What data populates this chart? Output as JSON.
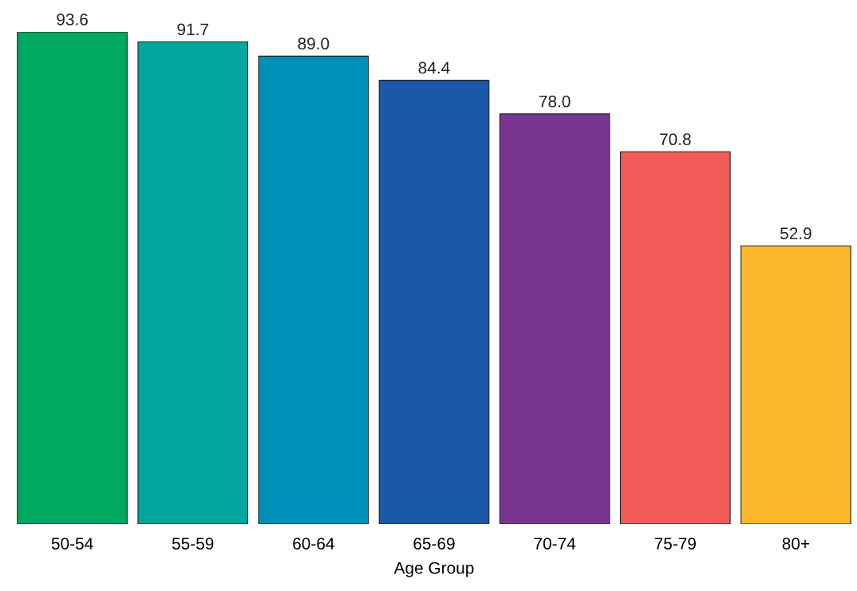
{
  "chart_data": {
    "type": "bar",
    "xlabel": "Age Group",
    "categories": [
      "50-54",
      "55-59",
      "60-64",
      "65-69",
      "70-74",
      "75-79",
      "80+"
    ],
    "values": [
      93.6,
      91.7,
      89.0,
      84.4,
      78.0,
      70.8,
      52.9
    ],
    "colors": [
      "#00a862",
      "#00a59c",
      "#0090b8",
      "#1c58a8",
      "#7a3592",
      "#f05a58",
      "#fbb82a"
    ],
    "value_labels": [
      "93.6",
      "91.7",
      "89.0",
      "84.4",
      "78.0",
      "70.8",
      "52.9"
    ],
    "grid": false,
    "legend": false
  }
}
